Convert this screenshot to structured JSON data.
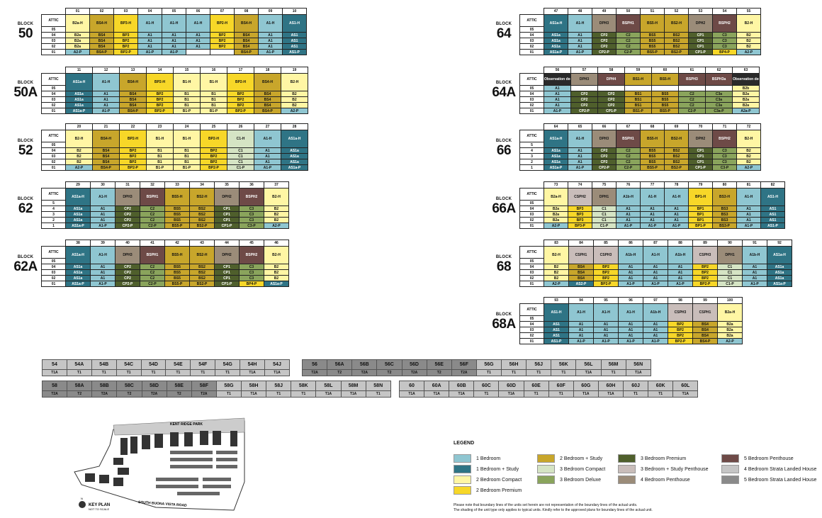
{
  "block_word": "BLOCK",
  "blocks": [
    {
      "id": "50",
      "nums": [
        "01",
        "02",
        "03",
        "04",
        "05",
        "06",
        "07",
        "08",
        "09",
        "10"
      ],
      "floor_labels": [
        "ATTIC",
        "05",
        "04",
        "03",
        "02",
        "01"
      ],
      "rows": [
        [
          "B2a-H",
          "BS4-H",
          "BP3-H",
          "A1-H",
          "A1-H",
          "A1-H",
          "BP2-H",
          "BS4-H",
          "A1-H",
          "AS1-H"
        ],
        [
          "B2a",
          "BS4",
          "BP3",
          "A1",
          "A1",
          "A1",
          "BP2",
          "BS4",
          "A1",
          "AS1"
        ],
        [
          "B2a",
          "BS4",
          "BP2",
          "A1",
          "A1",
          "A1",
          "BP2",
          "BS4",
          "A1",
          "AS1"
        ],
        [
          "B2a",
          "BS4",
          "BP2",
          "A1",
          "A1",
          "A1",
          "BP2",
          "BS4",
          "A1",
          "AS1"
        ],
        [
          "A2-P",
          "BS4-P",
          "BP2-P",
          "A1-P",
          "A1-P",
          "",
          "",
          "BS4-P",
          "A1-P",
          "AS1-P"
        ]
      ]
    },
    {
      "id": "50A",
      "nums": [
        "11",
        "12",
        "13",
        "14",
        "15",
        "16",
        "17",
        "18",
        "19"
      ],
      "floor_labels": [
        "ATTIC",
        "05",
        "04",
        "03",
        "02",
        "01"
      ],
      "rows": [
        [
          "AS1a-H",
          "A1-H",
          "BS4-H",
          "BP2-H",
          "B1-H",
          "B1-H",
          "BP2-H",
          "BS4-H",
          "B2-H"
        ],
        [
          "AS1a",
          "A1",
          "BS4",
          "BP2",
          "B1",
          "B1",
          "BP2",
          "BS4",
          "B2"
        ],
        [
          "AS1a",
          "A1",
          "BS4",
          "BP2",
          "B1",
          "B1",
          "BP2",
          "BS4",
          "B2"
        ],
        [
          "AS1a",
          "A1",
          "BS4",
          "BP2",
          "B1",
          "B1",
          "BP2",
          "BS4",
          "B2"
        ],
        [
          "AS1a-P",
          "A1-P",
          "BS4-P",
          "BP2-P",
          "B1-P",
          "B1-P",
          "BP2-P",
          "BS4-P",
          "A2-P"
        ]
      ]
    },
    {
      "id": "52",
      "nums": [
        "20",
        "21",
        "22",
        "23",
        "24",
        "25",
        "26",
        "27",
        "28"
      ],
      "floor_labels": [
        "ATTIC",
        "05",
        "04",
        "03",
        "02",
        "01"
      ],
      "rows": [
        [
          "B2-H",
          "BS4-H",
          "BP2-H",
          "B1-H",
          "B1-H",
          "BP2-H",
          "C1-H",
          "A1-H",
          "AS1a-H"
        ],
        [
          "B2",
          "BS4",
          "BP2",
          "B1",
          "B1",
          "BP2",
          "C1",
          "A1",
          "AS1a"
        ],
        [
          "B2",
          "BS4",
          "BP2",
          "B1",
          "B1",
          "BP2",
          "C1",
          "A1",
          "AS1a"
        ],
        [
          "B2",
          "BS4",
          "BP2",
          "B1",
          "B1",
          "BP2",
          "C1",
          "A1",
          "AS1a"
        ],
        [
          "A2-P",
          "BS4-P",
          "BP2-P",
          "B1-P",
          "B1-P",
          "BP2-P",
          "C1-P",
          "A1-P",
          "AS1a-P"
        ]
      ]
    },
    {
      "id": "62",
      "nums": [
        "29",
        "30",
        "31",
        "32",
        "33",
        "34",
        "35",
        "36",
        "37"
      ],
      "floor_labels": [
        "ATTIC",
        "5",
        "4",
        "3",
        "2",
        "1"
      ],
      "rows": [
        [
          "AS1a-H",
          "A1-H",
          "DPH3",
          "BSPH1",
          "BS5-H",
          "BS2-H",
          "DPH2",
          "BSPH2",
          "B2-H"
        ],
        [
          "AS1a",
          "A1",
          "CP2",
          "C2",
          "BS5",
          "BS2",
          "CP1",
          "C3",
          "B2"
        ],
        [
          "AS1a",
          "A1",
          "CP2",
          "C2",
          "BS5",
          "BS2",
          "CP1",
          "C3",
          "B2"
        ],
        [
          "AS1a",
          "A1",
          "CP2",
          "C2",
          "BS5",
          "BS2",
          "CP1",
          "C3",
          "B2"
        ],
        [
          "AS1a-P",
          "A1-P",
          "CP2-P",
          "C2-P",
          "BS5-P",
          "BS2-P",
          "CP1-P",
          "C3-P",
          "A2-P"
        ]
      ]
    },
    {
      "id": "62A",
      "nums": [
        "38",
        "39",
        "40",
        "41",
        "42",
        "43",
        "44",
        "45",
        "46"
      ],
      "floor_labels": [
        "ATTIC",
        "05",
        "04",
        "03",
        "02",
        "01"
      ],
      "rows": [
        [
          "AS1a-H",
          "A1-H",
          "DPH3",
          "BSPH1",
          "BS5-H",
          "BS2-H",
          "DPH2",
          "BSPH2",
          "B2-H"
        ],
        [
          "AS1a",
          "A1",
          "CP2",
          "C2",
          "BS5",
          "BS2",
          "CP1",
          "C3",
          "B2"
        ],
        [
          "AS1a",
          "A1",
          "CP2",
          "C2",
          "BS5",
          "BS2",
          "CP1",
          "C3",
          "B2"
        ],
        [
          "AS1a",
          "A1",
          "CP2",
          "C2",
          "BS5",
          "BS2",
          "CP1",
          "C3",
          "B2"
        ],
        [
          "AS1a-P",
          "A1-P",
          "CP2-P",
          "C2-P",
          "BS5-P",
          "BS2-P",
          "CP1-P",
          "BP4-P",
          "AS1a-P"
        ]
      ]
    },
    {
      "id": "64",
      "nums": [
        "47",
        "48",
        "49",
        "50",
        "51",
        "52",
        "53",
        "54",
        "55"
      ],
      "floor_labels": [
        "ATTIC",
        "05",
        "04",
        "03",
        "02",
        "01"
      ],
      "rows": [
        [
          "AS1a-H",
          "A1-H",
          "DPH3",
          "BSPH1",
          "BS5-H",
          "BS2-H",
          "DPH2",
          "BSPH2",
          "B2-H"
        ],
        [
          "AS1a",
          "A1",
          "CP2",
          "C2",
          "BS5",
          "BS2",
          "CP1",
          "C3",
          "B2"
        ],
        [
          "AS1a",
          "A1",
          "CP2",
          "C2",
          "BS5",
          "BS2",
          "CP1",
          "C3",
          "B2"
        ],
        [
          "AS1a",
          "A1",
          "CP2",
          "C2",
          "BS5",
          "BS2",
          "CP1",
          "C3",
          "B2"
        ],
        [
          "AS1a-P",
          "A1-P",
          "CP2-P",
          "C2-P",
          "BS5-P",
          "BS2-P",
          "CP1-P",
          "BP4-P",
          "A2-P"
        ]
      ]
    },
    {
      "id": "64A",
      "nums": [
        "56",
        "57",
        "58",
        "59",
        "60",
        "61",
        "62",
        "63"
      ],
      "floor_labels": [
        "ATTIC",
        "05",
        "04",
        "03",
        "02",
        "01"
      ],
      "rows": [
        [
          "Observation deck",
          "DPH3",
          "DPH4",
          "BS1-H",
          "BS5-H",
          "BSPH3",
          "BSPH3a",
          "Observation deck"
        ],
        [
          "A1",
          "",
          "",
          "",
          "",
          "",
          "",
          "B2b"
        ],
        [
          "A1",
          "CP2",
          "CP2",
          "BS1",
          "BS5",
          "C2",
          "C3a",
          "B2a"
        ],
        [
          "A1",
          "CP2",
          "CP2",
          "BS1",
          "BS5",
          "C2",
          "C3a",
          "B2a"
        ],
        [
          "A1",
          "CP2",
          "CP2",
          "BS1",
          "BS5",
          "C2",
          "C3a",
          "B2a"
        ],
        [
          "A1-P",
          "CP2-P",
          "CP1-P",
          "BS1-P",
          "BS5-P",
          "C2-P",
          "C3a-P",
          "A2a-P"
        ]
      ]
    },
    {
      "id": "66",
      "nums": [
        "64",
        "65",
        "66",
        "67",
        "68",
        "69",
        "70",
        "71",
        "72"
      ],
      "floor_labels": [
        "ATTIC",
        "5",
        "4",
        "3",
        "2",
        "1"
      ],
      "rows": [
        [
          "AS1a-H",
          "A1-H",
          "DPH3",
          "BSPH1",
          "BS5-H",
          "BS2-H",
          "DPH2",
          "BSPH2",
          "B2-H"
        ],
        [
          "AS1a",
          "A1",
          "CP2",
          "C2",
          "BS5",
          "BS2",
          "CP1",
          "C3",
          "B2"
        ],
        [
          "AS1a",
          "A1",
          "CP2",
          "C2",
          "BS5",
          "BS2",
          "CP1",
          "C3",
          "B2"
        ],
        [
          "AS1a",
          "A1",
          "CP2",
          "C2",
          "BS5",
          "BS2",
          "CP1",
          "C3",
          "B2"
        ],
        [
          "AS1a-P",
          "A1-P",
          "CP2-P",
          "C2-P",
          "BS5-P",
          "BS2-P",
          "CP1-P",
          "C3-P",
          "A2-P"
        ]
      ]
    },
    {
      "id": "66A",
      "nums": [
        "73",
        "74",
        "75",
        "76",
        "77",
        "78",
        "79",
        "80",
        "81",
        "82"
      ],
      "floor_labels": [
        "ATTIC",
        "05",
        "04",
        "03",
        "02",
        "01"
      ],
      "rows": [
        [
          "B2a-H",
          "CSPH2",
          "DPH1",
          "A1b-H",
          "A1-H",
          "A1-H",
          "BP1-H",
          "BS3-H",
          "A1-H",
          "AS1-H"
        ],
        [
          "B2a",
          "BP3",
          "C1",
          "A1",
          "A1",
          "A1",
          "BP1",
          "BS3",
          "A1",
          "AS1"
        ],
        [
          "B2a",
          "BP3",
          "C1",
          "A1",
          "A1",
          "A1",
          "BP1",
          "BS3",
          "A1",
          "AS1"
        ],
        [
          "B2a",
          "BP3",
          "C1",
          "A1",
          "A1",
          "A1",
          "BP1",
          "BS3",
          "A1",
          "AS1"
        ],
        [
          "A2-P",
          "BP3-P",
          "C1-P",
          "A1-P",
          "A1-P",
          "A1-P",
          "BP1-P",
          "BS3-P",
          "A1-P",
          "AS1-P"
        ]
      ]
    },
    {
      "id": "68",
      "nums": [
        "83",
        "84",
        "85",
        "86",
        "87",
        "88",
        "89",
        "90",
        "91",
        "92"
      ],
      "floor_labels": [
        "ATTIC",
        "05",
        "04",
        "03",
        "02",
        "01"
      ],
      "rows": [
        [
          "B2-H",
          "CSPH1",
          "CSPH3",
          "A1b-H",
          "A1-H",
          "A1b-H",
          "CSPH3",
          "DPH1",
          "A1b-H",
          "AS1a-H"
        ],
        [
          "B2",
          "BS4",
          "BP2",
          "A1",
          "A1",
          "A1",
          "BP2",
          "C1",
          "A1",
          "AS1a"
        ],
        [
          "B2",
          "BS4",
          "BP2",
          "A1",
          "A1",
          "A1",
          "BP2",
          "C1",
          "A1",
          "AS1a"
        ],
        [
          "B2",
          "BS4",
          "BP2",
          "A1",
          "A1",
          "A1",
          "BP2",
          "C1",
          "A1",
          "AS1a"
        ],
        [
          "A2-P",
          "AS2-P",
          "BP2-P",
          "A1-P",
          "A1-P",
          "A1-P",
          "BP2-P",
          "C1-P",
          "A1-P",
          "AS1a-P"
        ]
      ]
    },
    {
      "id": "68A",
      "nums": [
        "93",
        "94",
        "95",
        "96",
        "97",
        "98",
        "99",
        "100"
      ],
      "floor_labels": [
        "ATTIC",
        "05",
        "04",
        "03",
        "02",
        "01"
      ],
      "rows": [
        [
          "AS1-H",
          "A1-H",
          "A1-H",
          "A1-H",
          "A1b-H",
          "CSPH3",
          "CSPH1",
          "B2a-H"
        ],
        [
          "AS1",
          "A1",
          "A1",
          "A1",
          "A1",
          "BP2",
          "BS4",
          "B2a"
        ],
        [
          "AS1",
          "A1",
          "A1",
          "A1",
          "A1",
          "BP2",
          "BS4",
          "B2a"
        ],
        [
          "AS1",
          "A1",
          "A1",
          "A1",
          "A1",
          "BP2",
          "BS4",
          "B2a"
        ],
        [
          "AS1-P",
          "A1-P",
          "A1-P",
          "A1-P",
          "A1-P",
          "BP2-P",
          "BS4-P",
          "A2-P"
        ]
      ]
    }
  ],
  "strips": [
    {
      "names": [
        "54",
        "54A",
        "54B",
        "54C",
        "54D",
        "54E",
        "54F",
        "54G",
        "54H",
        "54J"
      ],
      "types": [
        "T1A",
        "T1",
        "T1",
        "T1",
        "T1",
        "T1",
        "T1",
        "T1",
        "T1A",
        "T1A"
      ]
    },
    {
      "names": [
        "56",
        "56A",
        "56B",
        "56C",
        "56D",
        "56E",
        "56F",
        "56G",
        "56H",
        "56J",
        "56K",
        "56L",
        "56M",
        "56N"
      ],
      "types": [
        "T2A",
        "T2",
        "T2A",
        "T2",
        "T2A",
        "T2",
        "T2A",
        "T1",
        "T1",
        "T1",
        "T1",
        "T1A",
        "T1",
        "T1A"
      ]
    },
    {
      "names": [
        "58",
        "58A",
        "58B",
        "58C",
        "58D",
        "58E",
        "58F",
        "58G",
        "58H",
        "58J",
        "58K",
        "58L",
        "58M",
        "58N"
      ],
      "types": [
        "T2A",
        "T2",
        "T2A",
        "T2",
        "T2A",
        "T2",
        "T2A",
        "T1",
        "T1A",
        "T1",
        "T1",
        "T1A",
        "T1A",
        "T1"
      ]
    },
    {
      "names": [
        "60",
        "60A",
        "60B",
        "60C",
        "60D",
        "60E",
        "60F",
        "60G",
        "60H",
        "60J",
        "60K",
        "60L"
      ],
      "types": [
        "T1A",
        "T1A",
        "T1A",
        "T1",
        "T1A",
        "T1",
        "T1",
        "T1A",
        "T1A",
        "T1",
        "T1",
        "T1A"
      ]
    }
  ],
  "keyplan": {
    "title": "KEY PLAN",
    "subtitle": "NOT TO SCALE",
    "north": "N",
    "park": "KENT RIDGE PARK",
    "road": "SOUTH BUONA VISTA ROAD"
  },
  "legend": {
    "title": "LEGEND",
    "items": [
      {
        "label": "1 Bedroom",
        "color": "#8fc6d1"
      },
      {
        "label": "1 Bedroom + Study",
        "color": "#2f7485"
      },
      {
        "label": "2 Bedroom Compact",
        "color": "#fff6a4"
      },
      {
        "label": "2 Bedroom Premium",
        "color": "#f7d728"
      },
      {
        "label": "2 Bedroom + Study",
        "color": "#c8a62b"
      },
      {
        "label": "3 Bedroom Compact",
        "color": "#d5e4c4"
      },
      {
        "label": "3 Bedroom Deluxe",
        "color": "#8aa45c"
      },
      {
        "label": "3 Bedroom Premium",
        "color": "#4f5f2c"
      },
      {
        "label": "3 Bedroom + Study Penthouse",
        "color": "#c9bdba"
      },
      {
        "label": "4 Bedroom Penthouse",
        "color": "#9b8c79"
      },
      {
        "label": "5 Bedroom Penthouse",
        "color": "#6e4a47"
      },
      {
        "label": "4 Bedroom Strata Landed House",
        "color": "#c5c5c5"
      },
      {
        "label": "5 Bedroom Strata Landed House",
        "color": "#8a8a8a"
      }
    ]
  },
  "note": [
    "Please note that boundary lines of the units set herein are not representation of the boundary lines of the actual units.",
    "The shading of the unit type only applies to typical units. Kindly refer to the approved plans for boundary lines of the actual unit."
  ]
}
